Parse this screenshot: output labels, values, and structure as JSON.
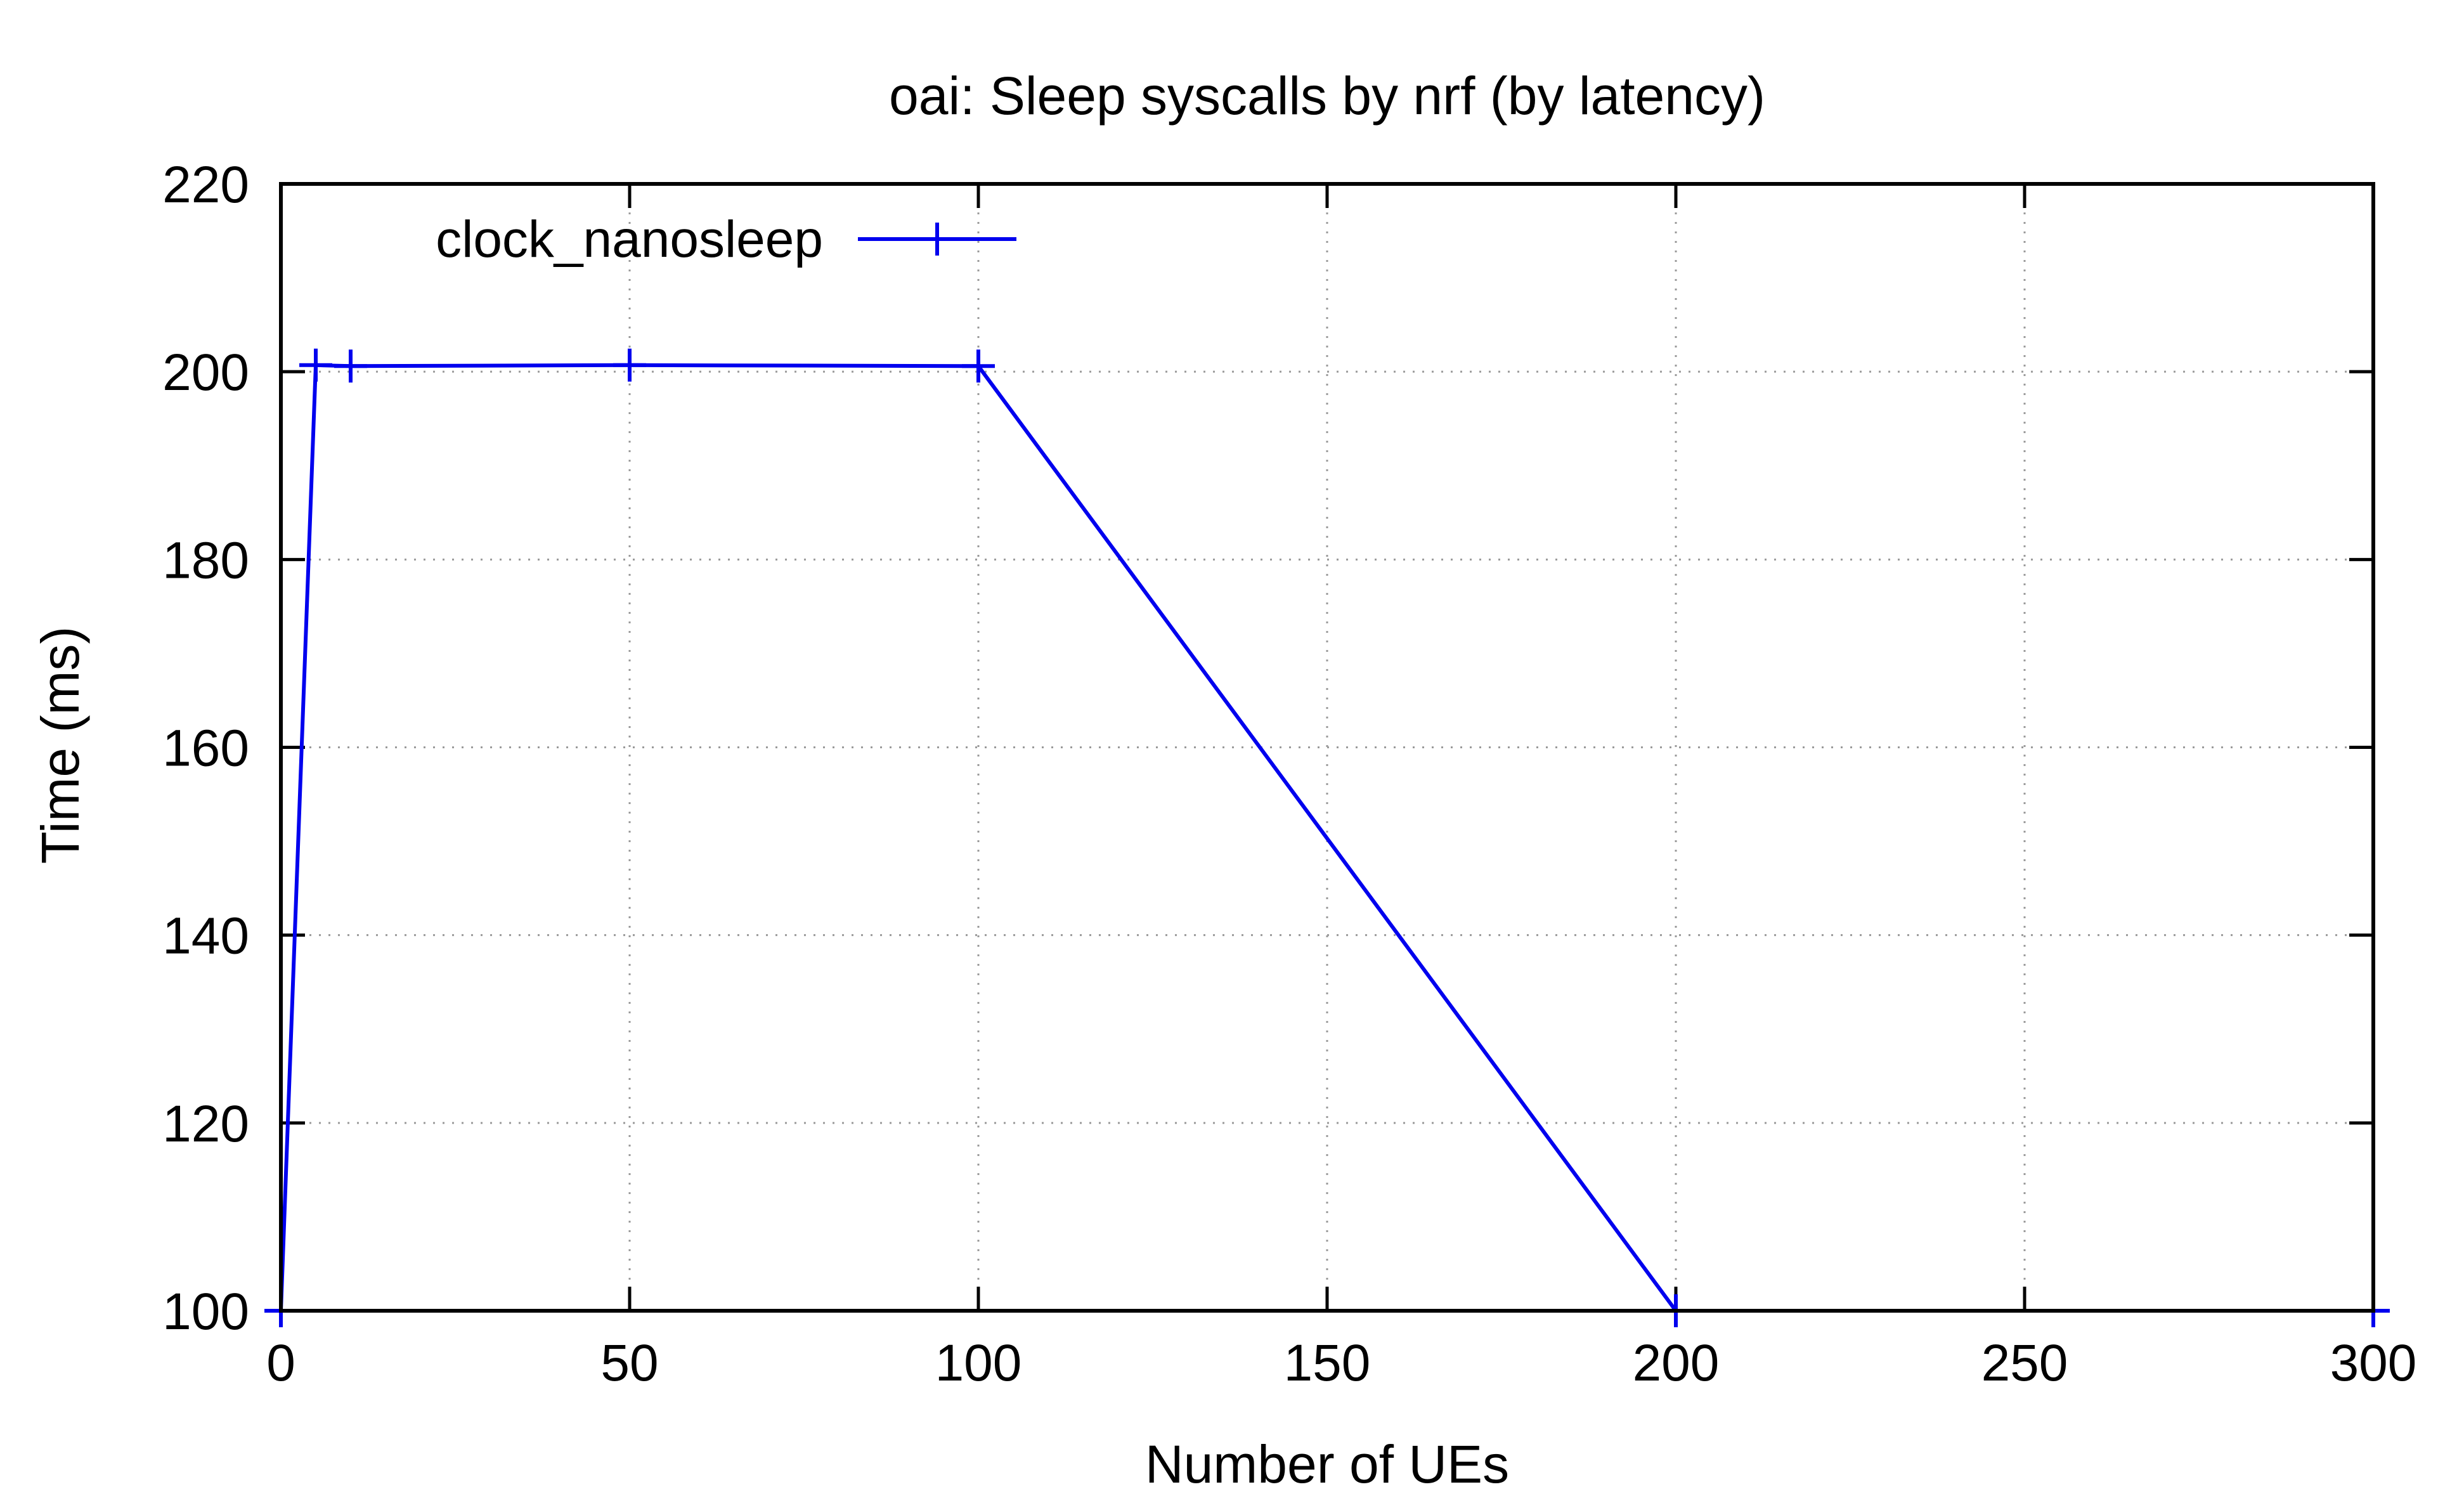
{
  "chart_data": {
    "type": "line",
    "title": "oai: Sleep syscalls by nrf (by latency)",
    "xlabel": "Number of UEs",
    "ylabel": "Time (ms)",
    "xlim": [
      0,
      300
    ],
    "ylim": [
      100,
      220
    ],
    "xticks": [
      0,
      50,
      100,
      150,
      200,
      250,
      300
    ],
    "yticks": [
      100,
      120,
      140,
      160,
      180,
      200,
      220
    ],
    "xtick_labels": [
      "0",
      "50",
      "100",
      "150",
      "200",
      "250",
      "300"
    ],
    "ytick_labels": [
      "100",
      "120",
      "140",
      "160",
      "180",
      "200",
      "220"
    ],
    "grid": true,
    "legend_position": "top-left",
    "series": [
      {
        "name": "clock_nanosleep",
        "color": "#0000ee",
        "marker": "plus",
        "x": [
          0,
          5,
          10,
          50,
          100,
          200,
          300
        ],
        "y": [
          100,
          200.7,
          200.6,
          200.7,
          200.6,
          100,
          100
        ]
      }
    ]
  }
}
